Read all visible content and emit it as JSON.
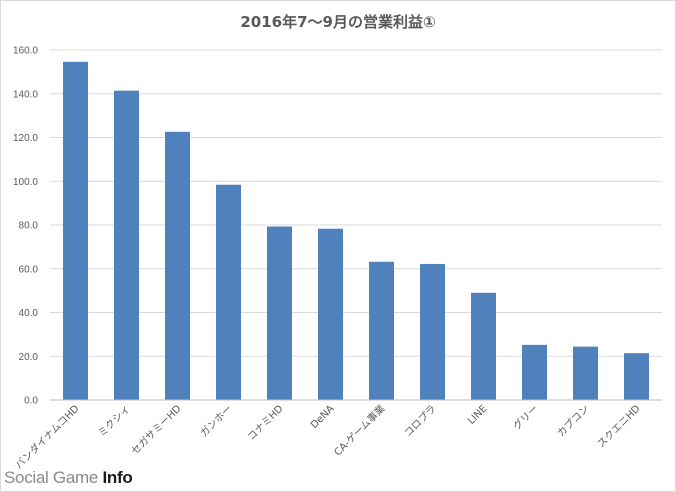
{
  "chart_data": {
    "type": "bar",
    "title": "2016年7～9月の営業利益①",
    "xlabel": "",
    "ylabel": "",
    "categories": [
      "バンダイナムコHD",
      "ミクシィ",
      "セガサミーHD",
      "ガンホー",
      "コナミHD",
      "DeNA",
      "CA-ゲーム事業",
      "コロプラ",
      "LINE",
      "グリー",
      "カプコン",
      "スクエニHD"
    ],
    "values": [
      154.6,
      141.4,
      122.6,
      98.4,
      79.3,
      78.3,
      63.2,
      62.2,
      49.0,
      25.2,
      24.4,
      21.4
    ],
    "ylim": [
      0,
      160
    ],
    "yticks": [
      "0.0",
      "20.0",
      "40.0",
      "60.0",
      "80.0",
      "100.0",
      "120.0",
      "140.0",
      "160.0"
    ],
    "grid": true,
    "legend": "none",
    "bar_color": "#4f81bd"
  },
  "watermark": {
    "prefix": "Social Game ",
    "suffix": "Info"
  }
}
